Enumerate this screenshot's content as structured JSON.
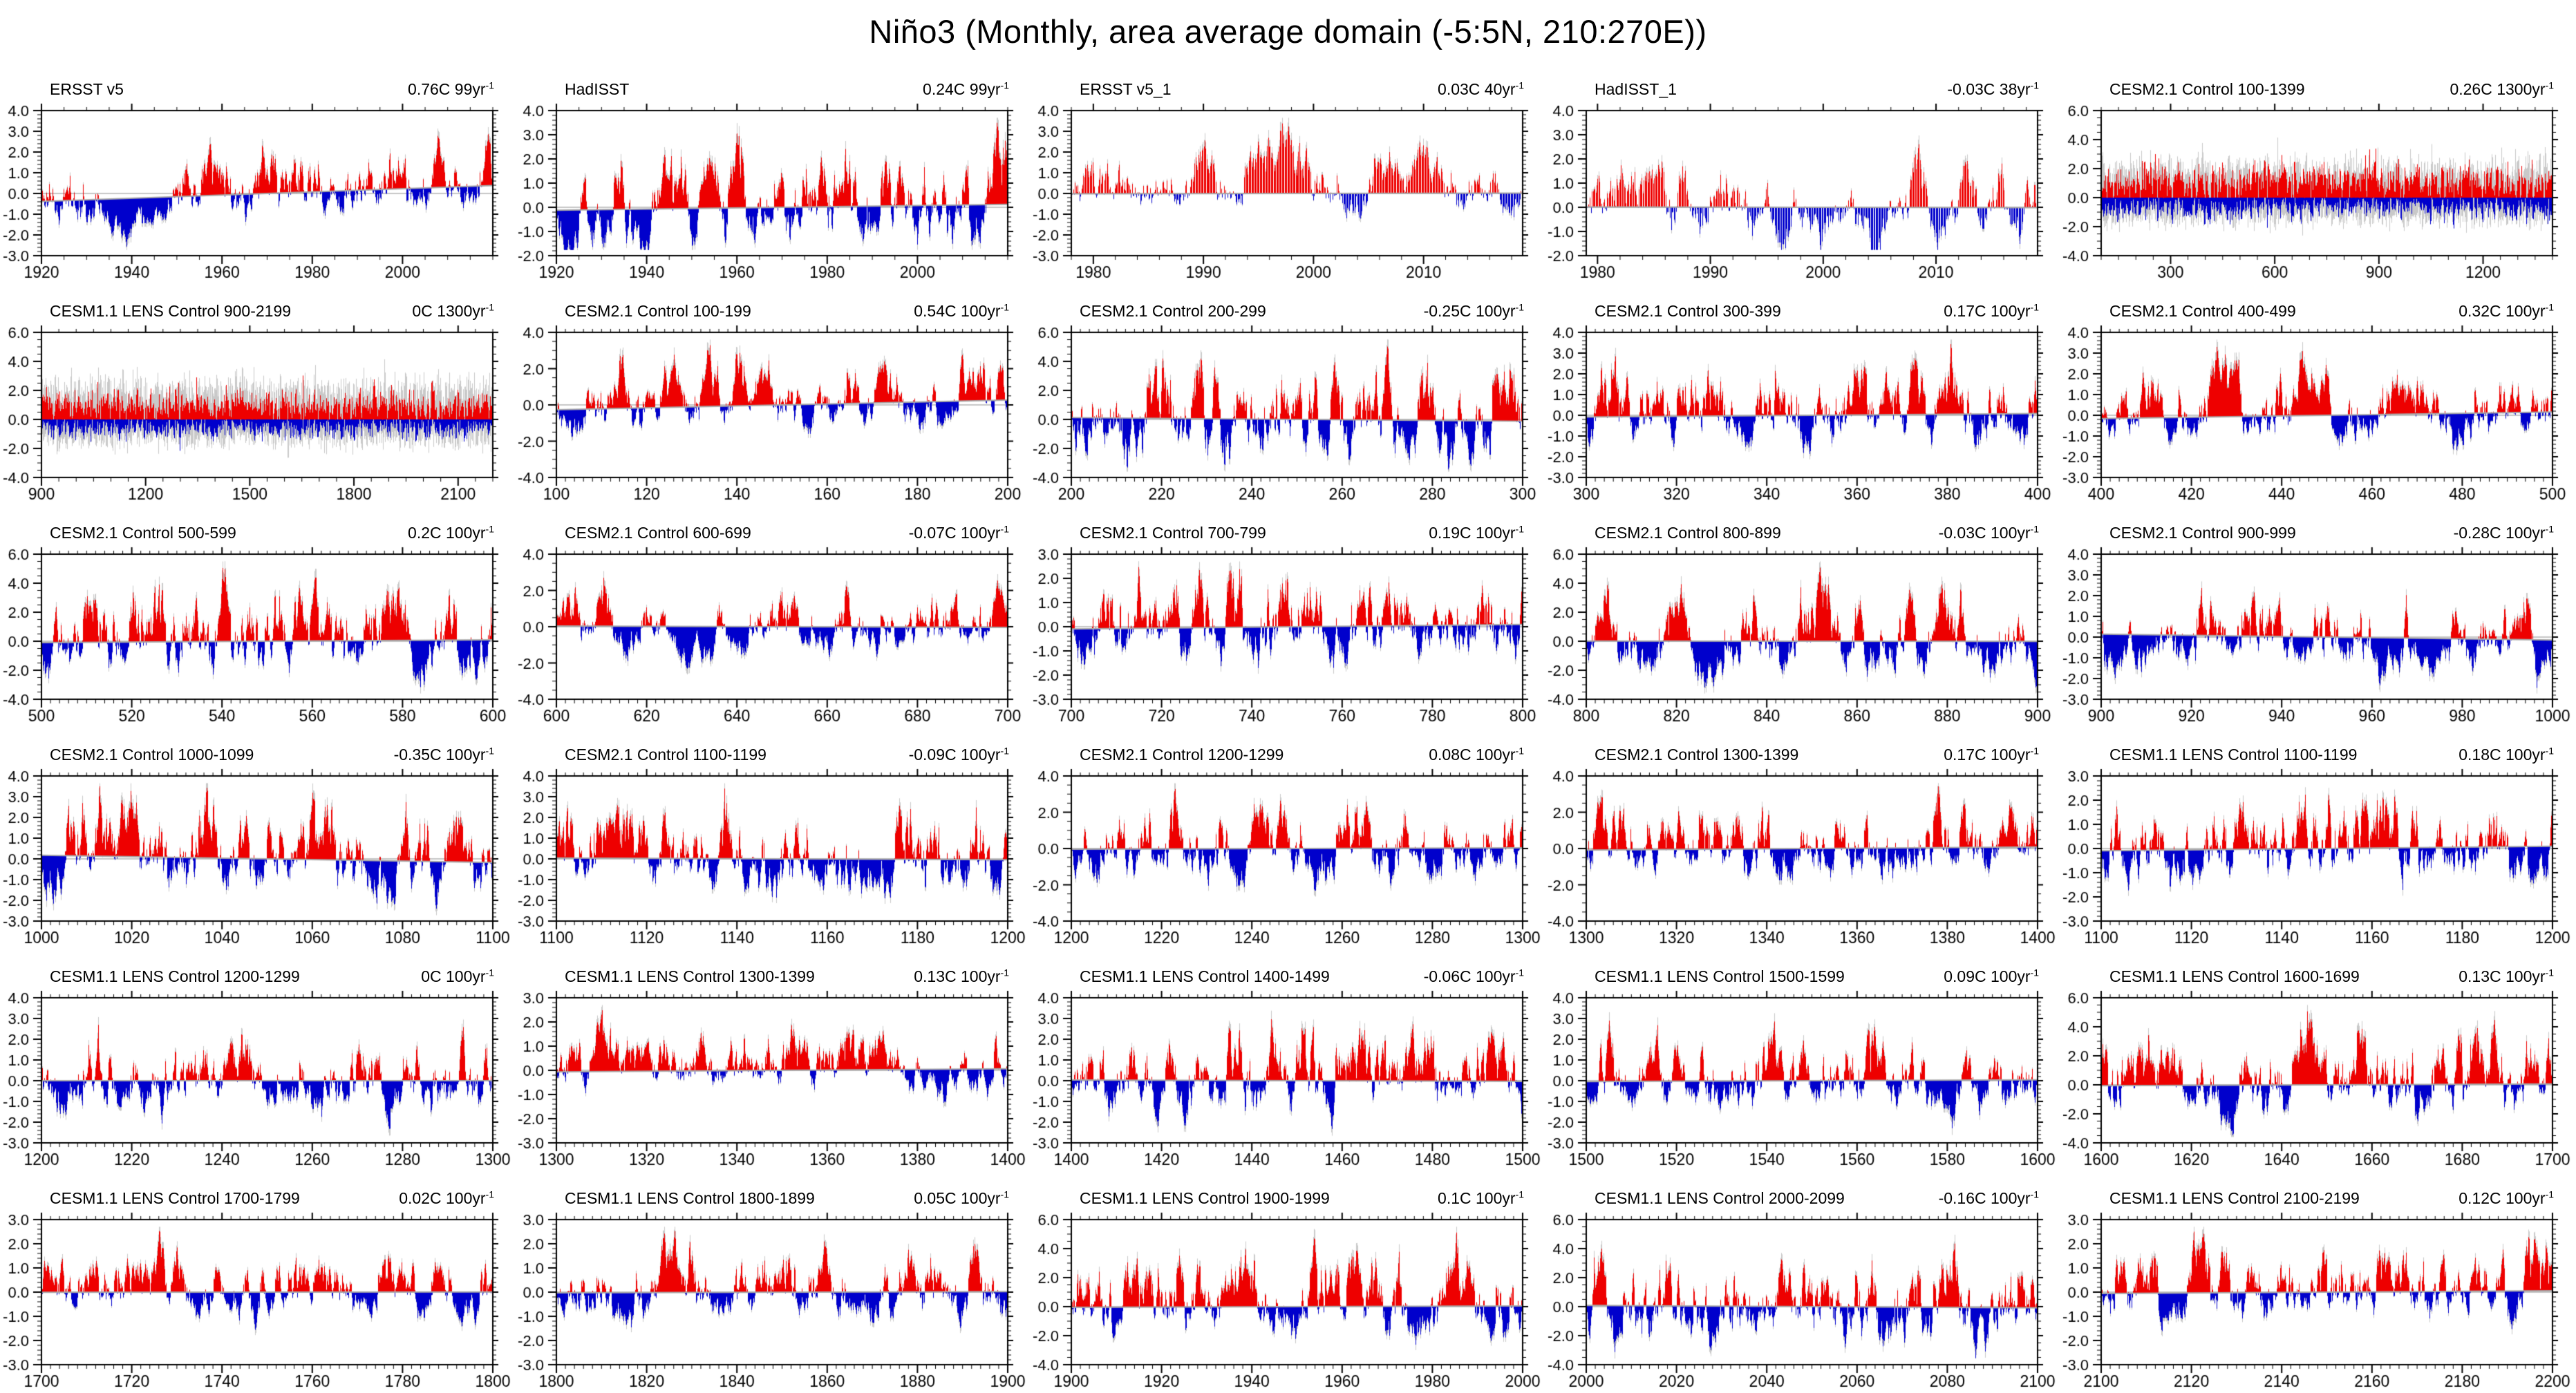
{
  "page_title": "Niño3 (Monthly, area average domain (-5:5N, 210:270E))",
  "chart_data": {
    "type": "area",
    "subtype": "monthly-sst-anomaly-grid",
    "layout": {
      "rows": 6,
      "cols": 5,
      "grid_on": false,
      "legend": "none"
    },
    "units": "C",
    "trend_exponent": "-1",
    "colors": {
      "positive": "#ee0000",
      "negative": "#0000cc",
      "raw_monthly": "#c9c9c9",
      "zero_line": "#c6c6c6",
      "trend_line": "#a8a8a8",
      "axis": "#000000"
    },
    "panels": [
      {
        "title": "ERSST v5",
        "trend": "0.76C 99yr",
        "x_min": 1920,
        "x_max": 2020,
        "x_ticks": [
          1920,
          1940,
          1960,
          1980,
          2000
        ],
        "x_minor": 5,
        "y_min": -3,
        "y_max": 4,
        "y_step": 1,
        "y_ticks": [
          4,
          3,
          2,
          1,
          0,
          -1,
          -2,
          -3
        ],
        "style": "filled",
        "seed": 11
      },
      {
        "title": "HadISST",
        "trend": "0.24C 99yr",
        "x_min": 1920,
        "x_max": 2020,
        "x_ticks": [
          1920,
          1940,
          1960,
          1980,
          2000
        ],
        "x_minor": 5,
        "y_min": -2,
        "y_max": 4,
        "y_step": 1,
        "y_ticks": [
          4,
          3,
          2,
          1,
          0,
          -1,
          -2
        ],
        "style": "filled",
        "seed": 22
      },
      {
        "title": "ERSST v5_1",
        "trend": "0.03C 40yr",
        "x_min": 1978,
        "x_max": 2019,
        "x_ticks": [
          1980,
          1990,
          2000,
          2010
        ],
        "x_minor": 2,
        "y_min": -3,
        "y_max": 4,
        "y_step": 1,
        "y_ticks": [
          4,
          3,
          2,
          1,
          0,
          -1,
          -2,
          -3
        ],
        "style": "filled",
        "seed": 33
      },
      {
        "title": "HadISST_1",
        "trend": "-0.03C 38yr",
        "x_min": 1979,
        "x_max": 2019,
        "x_ticks": [
          1980,
          1990,
          2000,
          2010
        ],
        "x_minor": 2,
        "y_min": -2,
        "y_max": 4,
        "y_step": 1,
        "y_ticks": [
          4,
          3,
          2,
          1,
          0,
          -1,
          -2
        ],
        "style": "filled",
        "seed": 44
      },
      {
        "title": "CESM2.1 Control 100-1399",
        "trend": "0.26C 1300yr",
        "x_min": 100,
        "x_max": 1400,
        "x_ticks": [
          300,
          600,
          900,
          1200
        ],
        "x_minor": 50,
        "y_min": -4,
        "y_max": 6,
        "y_step": 2,
        "y_ticks": [
          6,
          4,
          2,
          0,
          -2,
          -4
        ],
        "style": "dense",
        "seed": 55
      },
      {
        "title": "CESM1.1 LENS Control 900-2199",
        "trend": "0C 1300yr",
        "x_min": 900,
        "x_max": 2200,
        "x_ticks": [
          900,
          1200,
          1500,
          1800,
          2100
        ],
        "x_minor": 50,
        "y_min": -4,
        "y_max": 6,
        "y_step": 2,
        "y_ticks": [
          6,
          4,
          2,
          0,
          -2,
          -4
        ],
        "style": "dense",
        "seed": 66
      },
      {
        "title": "CESM2.1 Control 100-199",
        "trend": "0.54C 100yr",
        "x_min": 100,
        "x_max": 200,
        "x_ticks": [
          100,
          120,
          140,
          160,
          180,
          200
        ],
        "x_minor": 2,
        "y_min": -4,
        "y_max": 4,
        "y_step": 2,
        "y_ticks": [
          4,
          2,
          0,
          -2,
          -4
        ],
        "style": "filled",
        "seed": 77
      },
      {
        "title": "CESM2.1 Control 200-299",
        "trend": "-0.25C 100yr",
        "x_min": 200,
        "x_max": 300,
        "x_ticks": [
          200,
          220,
          240,
          260,
          280,
          300
        ],
        "x_minor": 2,
        "y_min": -4,
        "y_max": 6,
        "y_step": 2,
        "y_ticks": [
          6,
          4,
          2,
          0,
          -2,
          -4
        ],
        "style": "filled",
        "seed": 88
      },
      {
        "title": "CESM2.1 Control 300-399",
        "trend": "0.17C 100yr",
        "x_min": 300,
        "x_max": 400,
        "x_ticks": [
          300,
          320,
          340,
          360,
          380,
          400
        ],
        "x_minor": 2,
        "y_min": -3,
        "y_max": 4,
        "y_step": 1,
        "y_ticks": [
          4,
          3,
          2,
          1,
          0,
          -1,
          -2,
          -3
        ],
        "style": "filled",
        "seed": 99
      },
      {
        "title": "CESM2.1 Control 400-499",
        "trend": "0.32C 100yr",
        "x_min": 400,
        "x_max": 500,
        "x_ticks": [
          400,
          420,
          440,
          460,
          480,
          500
        ],
        "x_minor": 2,
        "y_min": -3,
        "y_max": 4,
        "y_step": 1,
        "y_ticks": [
          4,
          3,
          2,
          1,
          0,
          -1,
          -2,
          -3
        ],
        "style": "filled",
        "seed": 110
      },
      {
        "title": "CESM2.1 Control 500-599",
        "trend": "0.2C 100yr",
        "x_min": 500,
        "x_max": 600,
        "x_ticks": [
          500,
          520,
          540,
          560,
          580,
          600
        ],
        "x_minor": 2,
        "y_min": -4,
        "y_max": 6,
        "y_step": 2,
        "y_ticks": [
          6,
          4,
          2,
          0,
          -2,
          -4
        ],
        "style": "filled",
        "seed": 121
      },
      {
        "title": "CESM2.1 Control 600-699",
        "trend": "-0.07C 100yr",
        "x_min": 600,
        "x_max": 700,
        "x_ticks": [
          600,
          620,
          640,
          660,
          680,
          700
        ],
        "x_minor": 2,
        "y_min": -4,
        "y_max": 4,
        "y_step": 2,
        "y_ticks": [
          4,
          2,
          0,
          -2,
          -4
        ],
        "style": "filled",
        "seed": 132
      },
      {
        "title": "CESM2.1 Control 700-799",
        "trend": "0.19C 100yr",
        "x_min": 700,
        "x_max": 800,
        "x_ticks": [
          700,
          720,
          740,
          760,
          780,
          800
        ],
        "x_minor": 2,
        "y_min": -3,
        "y_max": 3,
        "y_step": 1,
        "y_ticks": [
          3,
          2,
          1,
          0,
          -1,
          -2,
          -3
        ],
        "style": "filled",
        "seed": 143
      },
      {
        "title": "CESM2.1 Control 800-899",
        "trend": "-0.03C 100yr",
        "x_min": 800,
        "x_max": 900,
        "x_ticks": [
          800,
          820,
          840,
          860,
          880,
          900
        ],
        "x_minor": 2,
        "y_min": -4,
        "y_max": 6,
        "y_step": 2,
        "y_ticks": [
          6,
          4,
          2,
          0,
          -2,
          -4
        ],
        "style": "filled",
        "seed": 154
      },
      {
        "title": "CESM2.1 Control 900-999",
        "trend": "-0.28C 100yr",
        "x_min": 900,
        "x_max": 1000,
        "x_ticks": [
          900,
          920,
          940,
          960,
          980,
          1000
        ],
        "x_minor": 2,
        "y_min": -3,
        "y_max": 4,
        "y_step": 1,
        "y_ticks": [
          4,
          3,
          2,
          1,
          0,
          -1,
          -2,
          -3
        ],
        "style": "filled",
        "seed": 165
      },
      {
        "title": "CESM2.1 Control 1000-1099",
        "trend": "-0.35C 100yr",
        "x_min": 1000,
        "x_max": 1100,
        "x_ticks": [
          1000,
          1020,
          1040,
          1060,
          1080,
          1100
        ],
        "x_minor": 2,
        "y_min": -3,
        "y_max": 4,
        "y_step": 1,
        "y_ticks": [
          4,
          3,
          2,
          1,
          0,
          -1,
          -2,
          -3
        ],
        "style": "filled",
        "seed": 176
      },
      {
        "title": "CESM2.1 Control 1100-1199",
        "trend": "-0.09C 100yr",
        "x_min": 1100,
        "x_max": 1200,
        "x_ticks": [
          1100,
          1120,
          1140,
          1160,
          1180,
          1200
        ],
        "x_minor": 2,
        "y_min": -3,
        "y_max": 4,
        "y_step": 1,
        "y_ticks": [
          4,
          3,
          2,
          1,
          0,
          -1,
          -2,
          -3
        ],
        "style": "filled",
        "seed": 187
      },
      {
        "title": "CESM2.1 Control 1200-1299",
        "trend": "0.08C 100yr",
        "x_min": 1200,
        "x_max": 1300,
        "x_ticks": [
          1200,
          1220,
          1240,
          1260,
          1280,
          1300
        ],
        "x_minor": 2,
        "y_min": -4,
        "y_max": 4,
        "y_step": 2,
        "y_ticks": [
          4,
          2,
          0,
          -2,
          -4
        ],
        "style": "filled",
        "seed": 198
      },
      {
        "title": "CESM2.1 Control 1300-1399",
        "trend": "0.17C 100yr",
        "x_min": 1300,
        "x_max": 1400,
        "x_ticks": [
          1300,
          1320,
          1340,
          1360,
          1380,
          1400
        ],
        "x_minor": 2,
        "y_min": -4,
        "y_max": 4,
        "y_step": 2,
        "y_ticks": [
          4,
          2,
          0,
          -2,
          -4
        ],
        "style": "filled",
        "seed": 209
      },
      {
        "title": "CESM1.1 LENS Control 1100-1199",
        "trend": "0.18C 100yr",
        "x_min": 1100,
        "x_max": 1200,
        "x_ticks": [
          1100,
          1120,
          1140,
          1160,
          1180,
          1200
        ],
        "x_minor": 2,
        "y_min": -3,
        "y_max": 3,
        "y_step": 1,
        "y_ticks": [
          3,
          2,
          1,
          0,
          -1,
          -2,
          -3
        ],
        "style": "filled",
        "seed": 220
      },
      {
        "title": "CESM1.1 LENS Control 1200-1299",
        "trend": "0C 100yr",
        "x_min": 1200,
        "x_max": 1300,
        "x_ticks": [
          1200,
          1220,
          1240,
          1260,
          1280,
          1300
        ],
        "x_minor": 2,
        "y_min": -3,
        "y_max": 4,
        "y_step": 1,
        "y_ticks": [
          4,
          3,
          2,
          1,
          0,
          -1,
          -2,
          -3
        ],
        "style": "filled",
        "seed": 231
      },
      {
        "title": "CESM1.1 LENS Control 1300-1399",
        "trend": "0.13C 100yr",
        "x_min": 1300,
        "x_max": 1400,
        "x_ticks": [
          1300,
          1320,
          1340,
          1360,
          1380,
          1400
        ],
        "x_minor": 2,
        "y_min": -3,
        "y_max": 3,
        "y_step": 1,
        "y_ticks": [
          3,
          2,
          1,
          0,
          -1,
          -2,
          -3
        ],
        "style": "filled",
        "seed": 242
      },
      {
        "title": "CESM1.1 LENS Control 1400-1499",
        "trend": "-0.06C 100yr",
        "x_min": 1400,
        "x_max": 1500,
        "x_ticks": [
          1400,
          1420,
          1440,
          1460,
          1480,
          1500
        ],
        "x_minor": 2,
        "y_min": -3,
        "y_max": 4,
        "y_step": 1,
        "y_ticks": [
          4,
          3,
          2,
          1,
          0,
          -1,
          -2,
          -3
        ],
        "style": "filled",
        "seed": 253
      },
      {
        "title": "CESM1.1 LENS Control 1500-1599",
        "trend": "0.09C 100yr",
        "x_min": 1500,
        "x_max": 1600,
        "x_ticks": [
          1500,
          1520,
          1540,
          1560,
          1580,
          1600
        ],
        "x_minor": 2,
        "y_min": -3,
        "y_max": 4,
        "y_step": 1,
        "y_ticks": [
          4,
          3,
          2,
          1,
          0,
          -1,
          -2,
          -3
        ],
        "style": "filled",
        "seed": 264
      },
      {
        "title": "CESM1.1 LENS Control 1600-1699",
        "trend": "0.13C 100yr",
        "x_min": 1600,
        "x_max": 1700,
        "x_ticks": [
          1600,
          1620,
          1640,
          1660,
          1680,
          1700
        ],
        "x_minor": 2,
        "y_min": -4,
        "y_max": 6,
        "y_step": 2,
        "y_ticks": [
          6,
          4,
          2,
          0,
          -2,
          -4
        ],
        "style": "filled",
        "seed": 275
      },
      {
        "title": "CESM1.1 LENS Control 1700-1799",
        "trend": "0.02C 100yr",
        "x_min": 1700,
        "x_max": 1800,
        "x_ticks": [
          1700,
          1720,
          1740,
          1760,
          1780,
          1800
        ],
        "x_minor": 2,
        "y_min": -3,
        "y_max": 3,
        "y_step": 1,
        "y_ticks": [
          3,
          2,
          1,
          0,
          -1,
          -2,
          -3
        ],
        "style": "filled",
        "seed": 286
      },
      {
        "title": "CESM1.1 LENS Control 1800-1899",
        "trend": "0.05C 100yr",
        "x_min": 1800,
        "x_max": 1900,
        "x_ticks": [
          1800,
          1820,
          1840,
          1860,
          1880,
          1900
        ],
        "x_minor": 2,
        "y_min": -3,
        "y_max": 3,
        "y_step": 1,
        "y_ticks": [
          3,
          2,
          1,
          0,
          -1,
          -2,
          -3
        ],
        "style": "filled",
        "seed": 297
      },
      {
        "title": "CESM1.1 LENS Control 1900-1999",
        "trend": "0.1C 100yr",
        "x_min": 1900,
        "x_max": 2000,
        "x_ticks": [
          1900,
          1920,
          1940,
          1960,
          1980,
          2000
        ],
        "x_minor": 2,
        "y_min": -4,
        "y_max": 6,
        "y_step": 2,
        "y_ticks": [
          6,
          4,
          2,
          0,
          -2,
          -4
        ],
        "style": "filled",
        "seed": 308
      },
      {
        "title": "CESM1.1 LENS Control 2000-2099",
        "trend": "-0.16C 100yr",
        "x_min": 2000,
        "x_max": 2100,
        "x_ticks": [
          2000,
          2020,
          2040,
          2060,
          2080,
          2100
        ],
        "x_minor": 2,
        "y_min": -4,
        "y_max": 6,
        "y_step": 2,
        "y_ticks": [
          6,
          4,
          2,
          0,
          -2,
          -4
        ],
        "style": "filled",
        "seed": 319
      },
      {
        "title": "CESM1.1 LENS Control 2100-2199",
        "trend": "0.12C 100yr",
        "x_min": 2100,
        "x_max": 2200,
        "x_ticks": [
          2100,
          2120,
          2140,
          2160,
          2180,
          2200
        ],
        "x_minor": 2,
        "y_min": -3,
        "y_max": 3,
        "y_step": 1,
        "y_ticks": [
          3,
          2,
          1,
          0,
          -1,
          -2,
          -3
        ],
        "style": "filled",
        "seed": 330
      }
    ]
  }
}
